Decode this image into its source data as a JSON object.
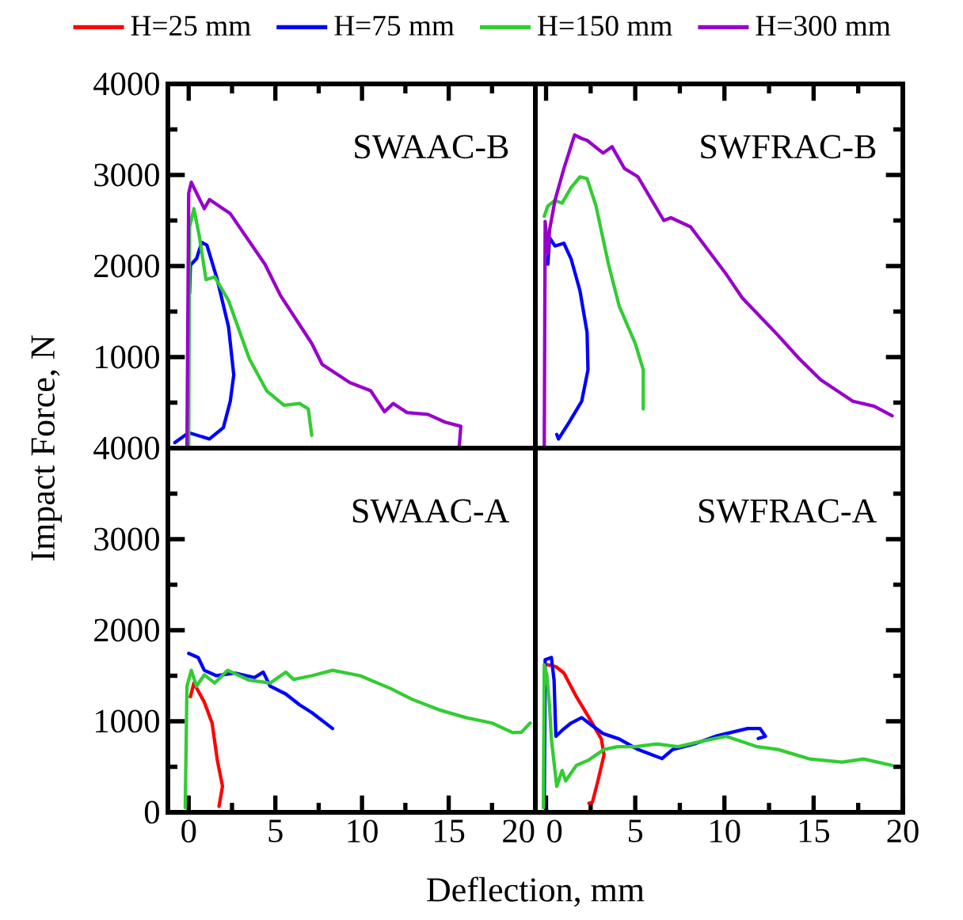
{
  "chart_data": [
    {
      "type": "line",
      "annotations": [
        "SWAAC-B"
      ],
      "xlim": [
        -1.2,
        20
      ],
      "ylim": [
        0,
        4000
      ],
      "xticks": [
        0,
        {
          "value": 2.5,
          "label": null
        },
        5,
        {
          "value": 7.5,
          "label": null
        },
        10,
        {
          "value": 12.5,
          "label": null
        },
        15,
        {
          "value": 17.5,
          "label": null
        },
        20
      ],
      "yticks": [
        {
          "value": 0,
          "label": null
        },
        {
          "value": 500,
          "label": null
        },
        1000,
        {
          "value": 1500,
          "label": null
        },
        2000,
        {
          "value": 2500,
          "label": null
        },
        3000,
        {
          "value": 3500,
          "label": null
        },
        4000
      ],
      "tick_labels": "y",
      "series": [
        {
          "color": "#0000ff",
          "x": [
            -0.8,
            0,
            1.2,
            2.0,
            2.4,
            2.6,
            2.3,
            1.65,
            1.05,
            0.75,
            0.45,
            0.1,
            0.05
          ],
          "values": [
            60,
            170,
            100,
            225,
            515,
            805,
            1330,
            1850,
            2230,
            2260,
            2080,
            2010,
            1700
          ]
        },
        {
          "color": "#33cc33",
          "x": [
            0,
            0.05,
            0.3,
            0.6,
            1.0,
            1.5,
            2.3,
            3.5,
            4.5,
            5.5,
            6.4,
            6.9,
            7.1
          ],
          "values": [
            0,
            2430,
            2630,
            2340,
            1850,
            1880,
            1620,
            980,
            630,
            470,
            490,
            430,
            140
          ]
        },
        {
          "color": "#9900cc",
          "x": [
            -0.1,
            0.0,
            0.15,
            0.9,
            1.2,
            2.4,
            4.4,
            5.3,
            7.1,
            7.7,
            9.3,
            10.5,
            11.3,
            11.8,
            12.6,
            13.8,
            14.8,
            15.7,
            15.6
          ],
          "values": [
            0,
            2800,
            2920,
            2630,
            2730,
            2575,
            2020,
            1675,
            1150,
            920,
            720,
            630,
            400,
            490,
            390,
            370,
            285,
            240,
            0
          ]
        }
      ]
    },
    {
      "type": "line",
      "annotations": [
        "SWFRAC-B"
      ],
      "xlim": [
        -0.6,
        20
      ],
      "ylim": [
        0,
        4000
      ],
      "xticks": [
        0,
        {
          "value": 2.5,
          "label": null
        },
        5,
        {
          "value": 7.5,
          "label": null
        },
        10,
        {
          "value": 12.5,
          "label": null
        },
        15,
        {
          "value": 17.5,
          "label": null
        },
        20
      ],
      "yticks": [
        0,
        {
          "value": 500,
          "label": null
        },
        1000,
        {
          "value": 1500,
          "label": null
        },
        2000,
        {
          "value": 2500,
          "label": null
        },
        3000,
        {
          "value": 3500,
          "label": null
        },
        4000
      ],
      "tick_labels": false,
      "series": [
        {
          "color": "#0000ff",
          "x": [
            0.1,
            0.2,
            0.5,
            1.0,
            1.4,
            1.9,
            2.3,
            2.35,
            2.0,
            1.3,
            0.7,
            0.6
          ],
          "values": [
            2020,
            2310,
            2220,
            2250,
            2080,
            1730,
            1270,
            860,
            515,
            285,
            100,
            150
          ]
        },
        {
          "color": "#33cc33",
          "x": [
            -0.1,
            0.1,
            0.5,
            0.9,
            1.4,
            1.9,
            2.3,
            2.8,
            3.5,
            4.1,
            5.0,
            5.45,
            5.45
          ],
          "values": [
            2545,
            2660,
            2720,
            2690,
            2860,
            2980,
            2960,
            2660,
            2020,
            1560,
            1150,
            860,
            430
          ]
        },
        {
          "name": "H=300 mm",
          "color": "#9900cc",
          "x": [
            -0.1,
            -0.05,
            0.1,
            0.2,
            0.5,
            1.0,
            1.6,
            2.0,
            2.3,
            3.2,
            3.7,
            4.4,
            5.15,
            6.6,
            7.0,
            8.1,
            10.1,
            11.0,
            13.0,
            14.2,
            15.4,
            17.2,
            18.4,
            19.4
          ],
          "values": [
            0,
            2490,
            2140,
            2400,
            2720,
            3070,
            3440,
            3400,
            3380,
            3240,
            3310,
            3070,
            2980,
            2500,
            2530,
            2430,
            1910,
            1650,
            1240,
            980,
            750,
            515,
            460,
            355
          ]
        }
      ]
    },
    {
      "type": "line",
      "annotations": [
        "SWAAC-A"
      ],
      "xlabel": "Deflection, mm",
      "ylabel": "Impact Force, N",
      "xlim": [
        -1.2,
        20
      ],
      "ylim": [
        0,
        4000
      ],
      "xticks": [
        0,
        {
          "value": 2.5,
          "label": null
        },
        5,
        {
          "value": 7.5,
          "label": null
        },
        10,
        {
          "value": 12.5,
          "label": null
        },
        15,
        {
          "value": 17.5,
          "label": null
        },
        20
      ],
      "yticks": [
        0,
        {
          "value": 500,
          "label": null
        },
        1000,
        {
          "value": 1500,
          "label": null
        },
        2000,
        {
          "value": 2500,
          "label": null
        },
        3000,
        {
          "value": 3500,
          "label": null
        },
        4000
      ],
      "series": [
        {
          "color": "#ff0000",
          "x": [
            0.1,
            0.3,
            0.9,
            1.35,
            1.65,
            1.95,
            1.75
          ],
          "values": [
            1270,
            1420,
            1210,
            980,
            575,
            285,
            65
          ]
        },
        {
          "color": "#0000ff",
          "x": [
            0.0,
            0.55,
            0.9,
            1.6,
            2.65,
            3.8,
            4.3,
            4.7,
            5.6,
            6.4,
            7.1,
            8.3
          ],
          "values": [
            1745,
            1700,
            1560,
            1500,
            1530,
            1480,
            1540,
            1385,
            1300,
            1180,
            1095,
            920
          ]
        },
        {
          "color": "#33cc33",
          "x": [
            -0.2,
            -0.1,
            0.15,
            0.45,
            0.9,
            1.5,
            2.25,
            3.5,
            4.7,
            5.6,
            6.05,
            7.1,
            8.3,
            9.9,
            11.7,
            12.9,
            14.45,
            16.0,
            17.5,
            18.7,
            19.2,
            19.7
          ],
          "values": [
            50,
            1385,
            1560,
            1385,
            1510,
            1420,
            1560,
            1450,
            1420,
            1540,
            1460,
            1500,
            1560,
            1500,
            1355,
            1240,
            1125,
            1040,
            980,
            875,
            880,
            980
          ]
        }
      ]
    },
    {
      "type": "line",
      "annotations": [
        "SWFRAC-A"
      ],
      "xlim": [
        -0.6,
        20
      ],
      "ylim": [
        0,
        4000
      ],
      "xticks": [
        0,
        {
          "value": 2.5,
          "label": null
        },
        5,
        {
          "value": 7.5,
          "label": null
        },
        10,
        {
          "value": 12.5,
          "label": null
        },
        15,
        {
          "value": 17.5,
          "label": null
        },
        20
      ],
      "yticks": [
        0,
        {
          "value": 500,
          "label": null
        },
        1000,
        {
          "value": 1500,
          "label": null
        },
        2000,
        {
          "value": 2500,
          "label": null
        },
        3000,
        {
          "value": 3500,
          "label": null
        },
        4000
      ],
      "tick_labels": "x",
      "legend": "top",
      "series": [
        {
          "name": "H=25 mm",
          "color": "#ff0000",
          "x": [
            0.1,
            0.55,
            1.0,
            1.7,
            2.5,
            3.1,
            3.25,
            2.9,
            2.6,
            2.4
          ],
          "values": [
            1620,
            1600,
            1530,
            1270,
            1010,
            805,
            630,
            340,
            110,
            100
          ]
        },
        {
          "name": "H=75 mm",
          "color": "#0000ff",
          "x": [
            -0.1,
            -0.05,
            0.3,
            0.45,
            0.55,
            0.9,
            1.4,
            2.0,
            2.6,
            3.2,
            4.1,
            5.15,
            5.9,
            6.5,
            7.1,
            8.3,
            9.5,
            10.65,
            11.3,
            12.0,
            12.3,
            11.9
          ],
          "values": [
            50,
            1675,
            1700,
            1450,
            835,
            900,
            980,
            1040,
            950,
            865,
            805,
            690,
            635,
            590,
            690,
            750,
            835,
            890,
            920,
            920,
            835,
            810
          ]
        },
        {
          "name": "H=150 mm",
          "color": "#33cc33",
          "x": [
            -0.15,
            -0.1,
            0.05,
            0.2,
            0.3,
            0.6,
            0.9,
            1.1,
            1.7,
            2.4,
            3.25,
            4.0,
            5.0,
            6.2,
            7.4,
            8.6,
            10.1,
            11.85,
            13.0,
            14.8,
            16.6,
            17.8,
            19.4
          ],
          "values": [
            50,
            1620,
            1500,
            1150,
            805,
            285,
            460,
            345,
            515,
            575,
            690,
            720,
            720,
            750,
            720,
            775,
            835,
            720,
            690,
            585,
            550,
            585,
            515
          ]
        }
      ]
    }
  ]
}
